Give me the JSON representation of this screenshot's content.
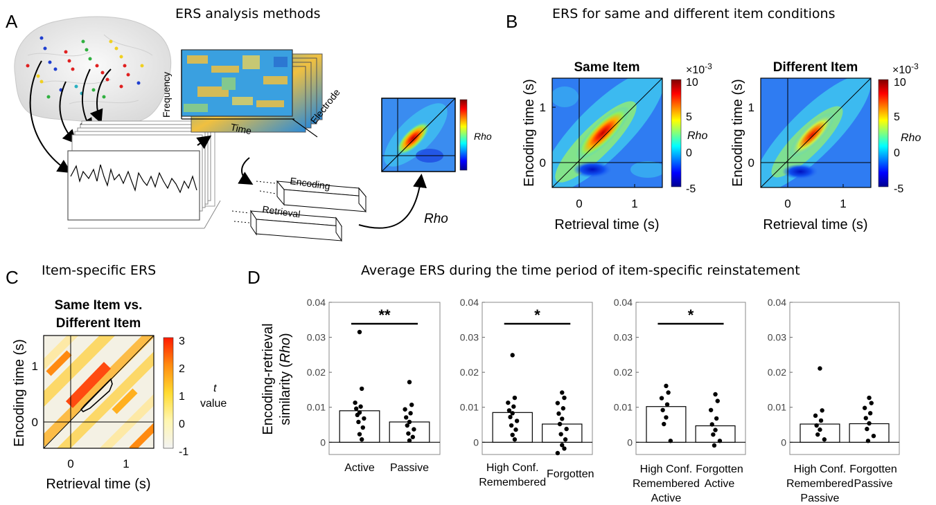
{
  "panel_a": {
    "label": "A",
    "title": "ERS analysis methods",
    "axis_frequency": "Frequency",
    "axis_time": "Time",
    "axis_electrode": "Electrode",
    "box_encoding": "Encoding",
    "box_retrieval": "Retrieval",
    "rho_arrow_label": "Rho",
    "mini_colorbar_label": "Rho"
  },
  "panel_b": {
    "label": "B",
    "title": "ERS for same and different item conditions",
    "maps": [
      {
        "title": "Same Item",
        "xlabel": "Retrieval time (s)",
        "ylabel": "Encoding time (s)",
        "xticks": [
          "0",
          "1"
        ],
        "yticks": [
          "1",
          "0"
        ]
      },
      {
        "title": "Different Item",
        "xlabel": "Retrieval time (s)",
        "ylabel": "Encoding time (s)",
        "xticks": [
          "0",
          "1"
        ],
        "yticks": [
          "1",
          "0"
        ]
      }
    ],
    "colorbar": {
      "exponent": "×10",
      "exponent_power": "-3",
      "ticks": [
        "10",
        "5",
        "0",
        "-5"
      ],
      "label": "Rho"
    }
  },
  "panel_c": {
    "label": "C",
    "title": "Item-specific ERS",
    "map_title_line1": "Same Item vs.",
    "map_title_line2": "Different Item",
    "xlabel": "Retrieval time (s)",
    "ylabel": "Encoding time (s)",
    "xticks": [
      "0",
      "1"
    ],
    "yticks": [
      "1",
      "0"
    ],
    "colorbar": {
      "ticks": [
        "3",
        "2",
        "1",
        "0",
        "-1"
      ],
      "label_line1": "t",
      "label_line2": "value"
    }
  },
  "panel_d": {
    "label": "D",
    "title": "Average ERS during the time period of item-specific reinstatement",
    "ylabel_part1": "Encoding-retrieval",
    "ylabel_part2": "similarity (",
    "ylabel_italic": "Rho",
    "ylabel_part3": ")",
    "yticks": [
      "0.04",
      "0.03",
      "0.02",
      "0.01",
      "0"
    ]
  },
  "chart_data": [
    {
      "type": "bar",
      "categories": [
        "Active",
        "Passive"
      ],
      "values": [
        0.009,
        0.0058
      ],
      "significance": "**",
      "ylim": [
        -0.0035,
        0.04
      ],
      "points": [
        [
          0.0315,
          0.0153,
          0.0113,
          0.0102,
          0.0096,
          0.0085,
          0.0078,
          0.0068,
          0.0058,
          0.0042,
          0.0023,
          0.0008
        ],
        [
          0.0172,
          0.0107,
          0.0094,
          0.0083,
          0.0071,
          0.0058,
          0.0048,
          0.0037,
          0.0025,
          0.0015,
          0.0005
        ]
      ]
    },
    {
      "type": "bar",
      "categories": [
        "High Conf. Remembered",
        "Forgotten"
      ],
      "values": [
        0.0085,
        0.0052
      ],
      "significance": "*",
      "ylim": [
        -0.0035,
        0.04
      ],
      "points": [
        [
          0.0249,
          0.0127,
          0.0113,
          0.0102,
          0.0091,
          0.0083,
          0.0072,
          0.0061,
          0.0048,
          0.0036,
          0.0021,
          0.0008
        ],
        [
          0.0142,
          0.0127,
          0.0112,
          0.0097,
          0.0082,
          0.0067,
          0.0052,
          0.0038,
          0.0023,
          0.0008,
          -0.0008,
          -0.0018,
          -0.0031
        ]
      ]
    },
    {
      "type": "bar",
      "categories": [
        "High Conf. Remembered Active",
        "Forgotten Active"
      ],
      "values": [
        0.0102,
        0.0047
      ],
      "significance": "*",
      "ylim": [
        -0.0035,
        0.04
      ],
      "points": [
        [
          0.0161,
          0.0142,
          0.0126,
          0.0108,
          0.0092,
          0.0071,
          0.0052,
          0.0004
        ],
        [
          0.0137,
          0.0118,
          0.0092,
          0.0068,
          0.0051,
          0.0035,
          0.0022,
          0.0004,
          -0.0009
        ]
      ]
    },
    {
      "type": "bar",
      "categories": [
        "High Conf. Remembered Passive",
        "Forgotten Passive"
      ],
      "values": [
        0.0052,
        0.0053
      ],
      "significance": "",
      "ylim": [
        -0.0035,
        0.04
      ],
      "points": [
        [
          0.0211,
          0.0091,
          0.0076,
          0.0062,
          0.0048,
          0.0036,
          0.0022,
          0.0008
        ],
        [
          0.0127,
          0.0112,
          0.0098,
          0.0083,
          0.0069,
          0.0054,
          0.0038,
          0.0018,
          0.0004
        ]
      ]
    }
  ]
}
